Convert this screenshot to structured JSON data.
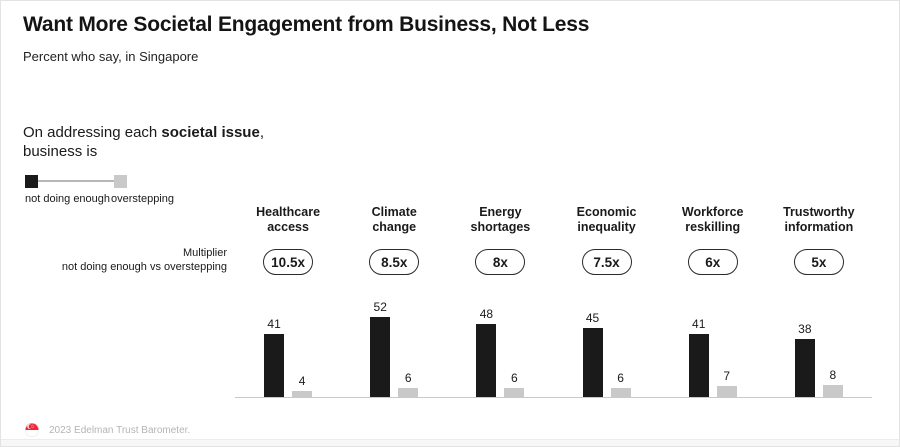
{
  "header": {
    "title": "Want More Societal Engagement from Business, Not Less",
    "subtitle": "Percent who say, in Singapore"
  },
  "intro": {
    "prefix": "On addressing each ",
    "bold": "societal issue",
    "suffix": ",",
    "line2": "business is"
  },
  "legend": {
    "items": [
      {
        "label": "not doing enough",
        "color": "#1a1a1a"
      },
      {
        "label": "overstepping",
        "color": "#c9c9c9"
      }
    ]
  },
  "multiplier_label": {
    "line1": "Multiplier",
    "line2": "not doing enough vs overstepping"
  },
  "chart_data": {
    "type": "bar",
    "title": "Want More Societal Engagement from Business, Not Less",
    "subtitle": "Percent who say, in Singapore",
    "categories": [
      "Healthcare\naccess",
      "Climate\nchange",
      "Energy\nshortages",
      "Economic\ninequality",
      "Workforce\nreskilling",
      "Trustworthy\ninformation"
    ],
    "series": [
      {
        "name": "not doing enough",
        "color": "#1a1a1a",
        "values": [
          41,
          52,
          48,
          45,
          41,
          38
        ]
      },
      {
        "name": "overstepping",
        "color": "#c9c9c9",
        "values": [
          4,
          6,
          6,
          6,
          7,
          8
        ]
      }
    ],
    "multipliers": [
      "10.5x",
      "8.5x",
      "8x",
      "7.5x",
      "6x",
      "5x"
    ],
    "ylim": [
      0,
      55
    ],
    "grid": false,
    "value_labels": true,
    "legend_position": "left",
    "baseline_color": "#c9c9c9"
  },
  "footer": {
    "source": "2023 Edelman Trust Barometer.",
    "flag": "singapore-flag-icon",
    "flag_colors": {
      "red": "#ed2939",
      "white": "#ffffff"
    }
  }
}
